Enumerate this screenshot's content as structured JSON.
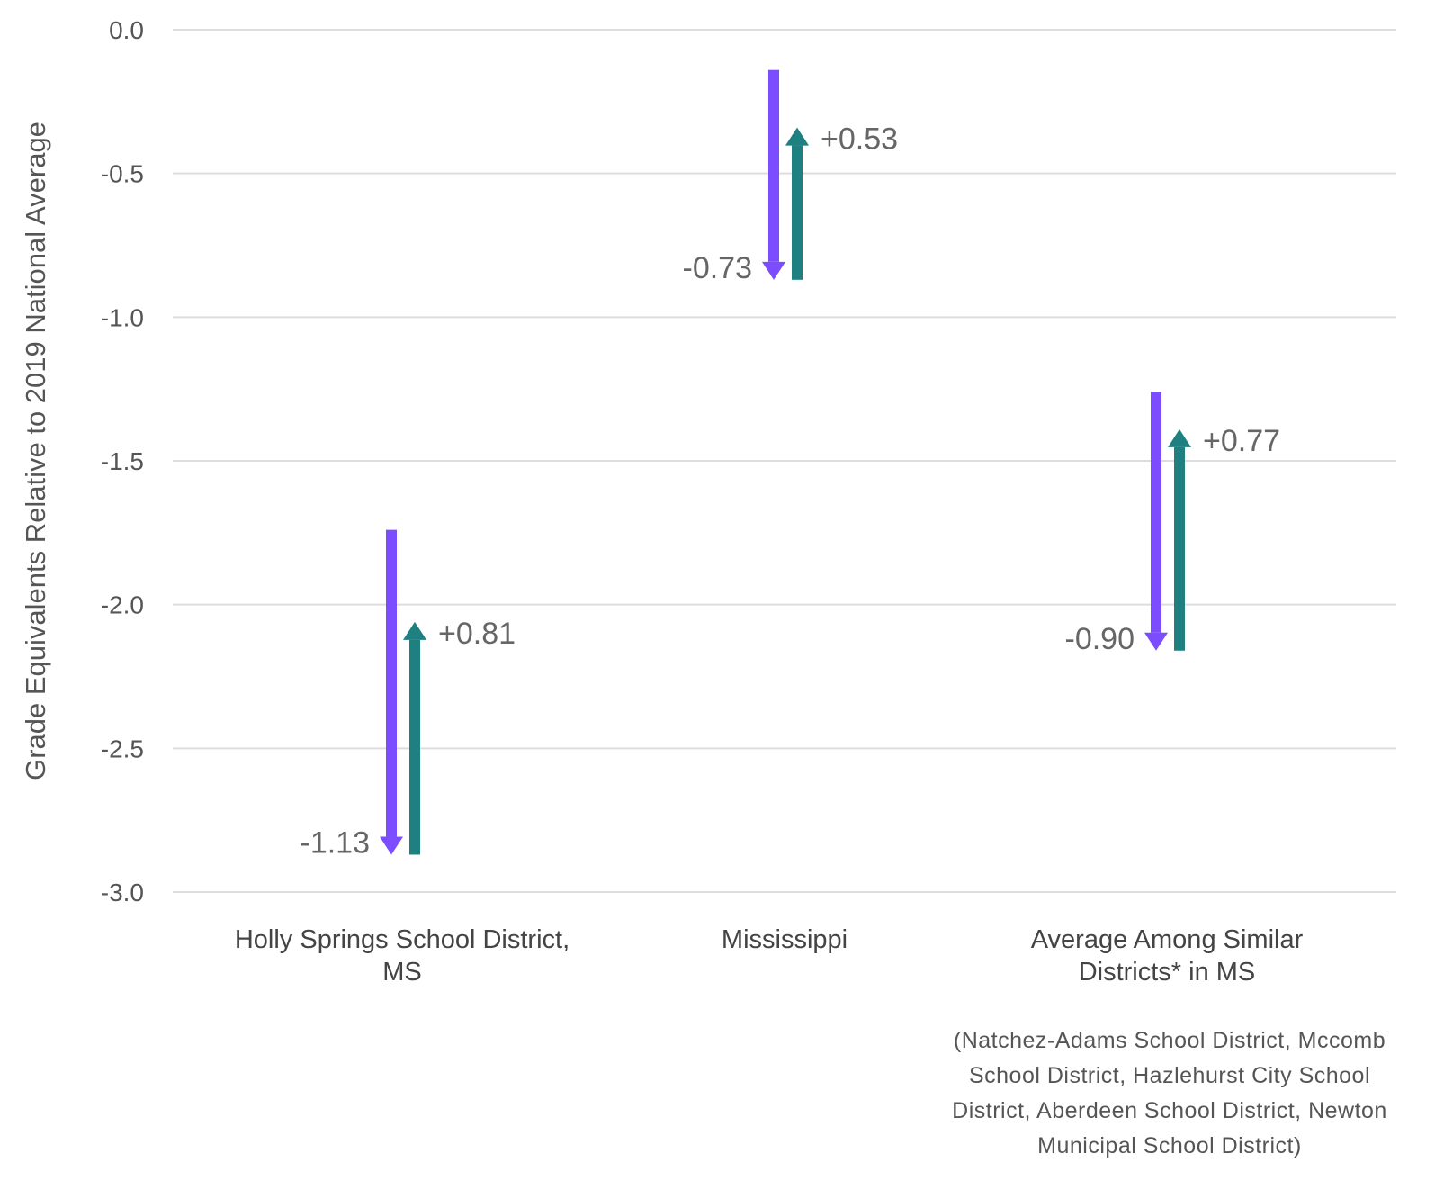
{
  "chart_data": {
    "type": "arrow",
    "ylabel": "Grade Equivalents Relative to 2019 National Average",
    "ylim": [
      -3.0,
      0.0
    ],
    "yticks": [
      0.0,
      -0.5,
      -1.0,
      -1.5,
      -2.0,
      -2.5,
      -3.0
    ],
    "ytick_labels": [
      "0.0",
      "-0.5",
      "-1.0",
      "-1.5",
      "-2.0",
      "-2.5",
      "-3.0"
    ],
    "grid": true,
    "colors": {
      "decline": "#7c4dff",
      "recovery": "#1e8080"
    },
    "categories": [
      {
        "label_lines": [
          "Holly Springs School District,",
          "MS"
        ],
        "decline": {
          "from": -1.74,
          "to": -2.87,
          "label": "-1.13"
        },
        "recovery": {
          "from": -2.87,
          "to": -2.06,
          "label": "+0.81"
        }
      },
      {
        "label_lines": [
          "Mississippi"
        ],
        "decline": {
          "from": -0.14,
          "to": -0.87,
          "label": "-0.73"
        },
        "recovery": {
          "from": -0.87,
          "to": -0.34,
          "label": "+0.53"
        }
      },
      {
        "label_lines": [
          "Average Among Similar",
          "Districts* in MS"
        ],
        "decline": {
          "from": -1.26,
          "to": -2.16,
          "label": "-0.90"
        },
        "recovery": {
          "from": -2.16,
          "to": -1.39,
          "label": "+0.77"
        }
      }
    ],
    "footnote_lines": [
      "(Natchez-Adams School District, Mccomb",
      "School District, Hazlehurst City School",
      "District, Aberdeen School District, Newton",
      "Municipal School District)"
    ]
  }
}
